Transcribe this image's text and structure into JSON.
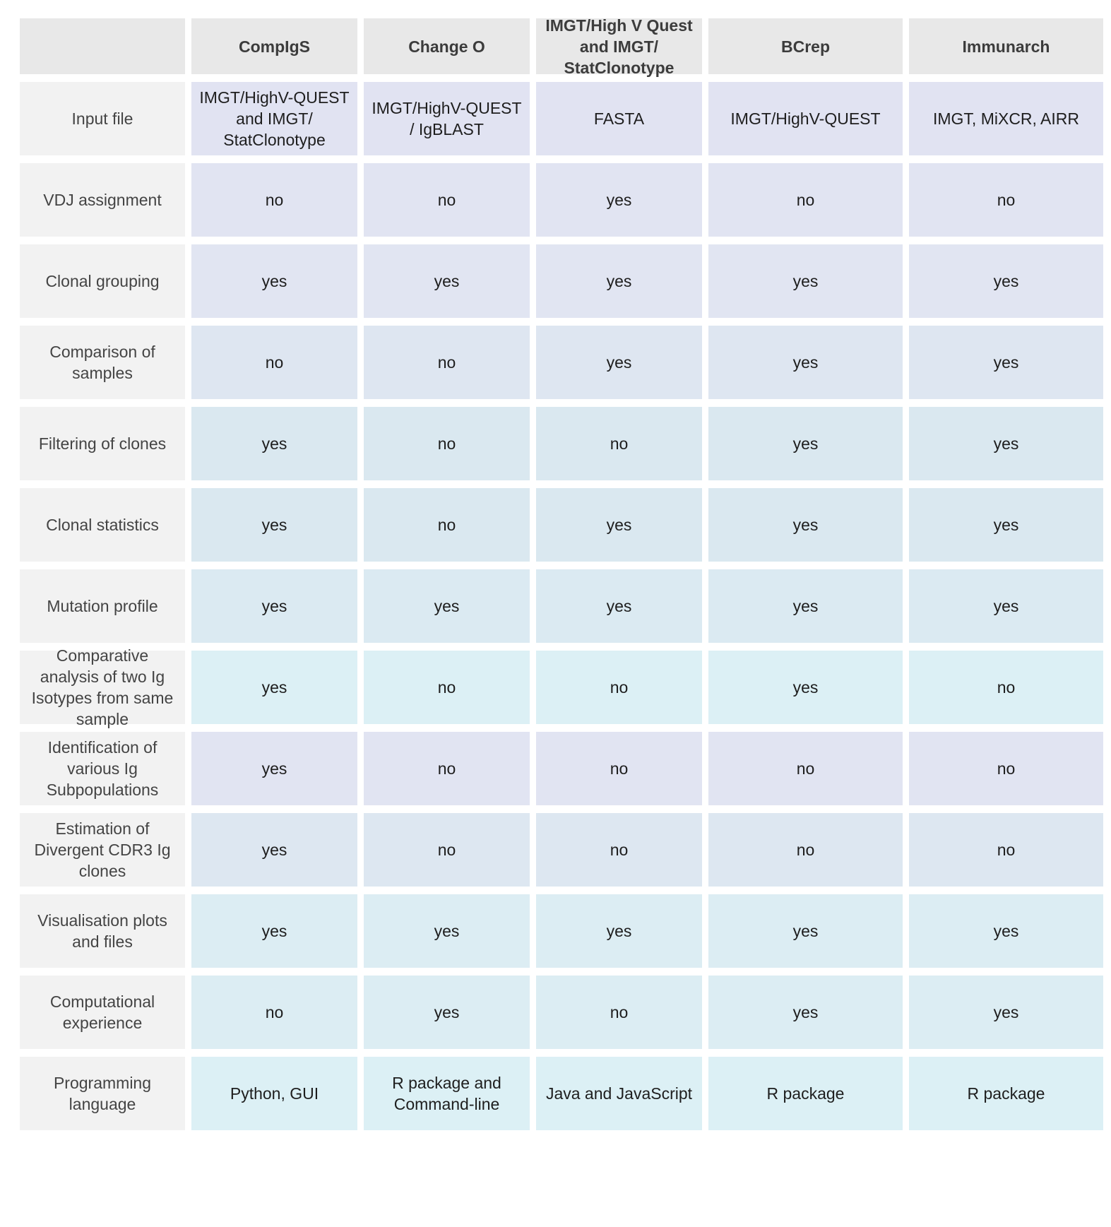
{
  "columns": [
    "",
    "CompIgS",
    "Change O",
    "IMGT/High V Quest and IMGT/ StatClonotype",
    "BCrep",
    "Immunarch"
  ],
  "rows": [
    {
      "label": "Input file",
      "values": [
        "IMGT/HighV-QUEST and IMGT/ StatClonotype",
        "IMGT/HighV-QUEST / IgBLAST",
        "FASTA",
        "IMGT/HighV-QUEST",
        "IMGT, MiXCR, AIRR"
      ]
    },
    {
      "label": "VDJ assignment",
      "values": [
        "no",
        "no",
        "yes",
        "no",
        "no"
      ]
    },
    {
      "label": "Clonal grouping",
      "values": [
        "yes",
        "yes",
        "yes",
        "yes",
        "yes"
      ]
    },
    {
      "label": "Comparison of samples",
      "values": [
        "no",
        "no",
        "yes",
        "yes",
        "yes"
      ]
    },
    {
      "label": "Filtering of clones",
      "values": [
        "yes",
        "no",
        "no",
        "yes",
        "yes"
      ]
    },
    {
      "label": "Clonal statistics",
      "values": [
        "yes",
        "no",
        "yes",
        "yes",
        "yes"
      ]
    },
    {
      "label": "Mutation profile",
      "values": [
        "yes",
        "yes",
        "yes",
        "yes",
        "yes"
      ]
    },
    {
      "label": "Comparative analysis of two Ig Isotypes from same sample",
      "values": [
        "yes",
        "no",
        "no",
        "yes",
        "no"
      ]
    },
    {
      "label": "Identification of various Ig Subpopulations",
      "values": [
        "yes",
        "no",
        "no",
        "no",
        "no"
      ]
    },
    {
      "label": "Estimation of Divergent CDR3 Ig clones",
      "values": [
        "yes",
        "no",
        "no",
        "no",
        "no"
      ]
    },
    {
      "label": "Visualisation plots and files",
      "values": [
        "yes",
        "yes",
        "yes",
        "yes",
        "yes"
      ]
    },
    {
      "label": "Computational experience",
      "values": [
        "no",
        "yes",
        "no",
        "yes",
        "yes"
      ]
    },
    {
      "label": "Programming language",
      "values": [
        "Python, GUI",
        "R package and Command-line",
        "Java and JavaScript",
        "R package",
        "R package"
      ]
    }
  ]
}
